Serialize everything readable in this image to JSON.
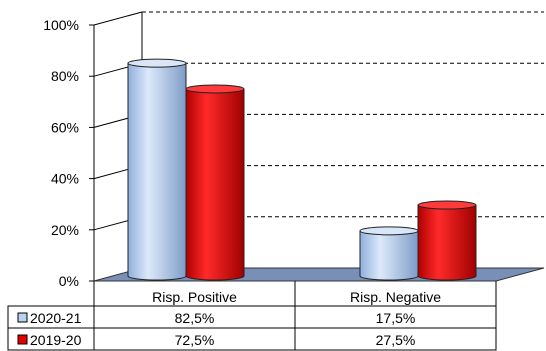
{
  "chart_data": {
    "type": "bar",
    "style": "3d-cylinder",
    "categories": [
      "Risp. Positive",
      "Risp. Negative"
    ],
    "series": [
      {
        "name": "2020-21",
        "values": [
          82.5,
          17.5
        ],
        "value_labels": [
          "82,5%",
          "17,5%"
        ],
        "color": "#B9D3F2"
      },
      {
        "name": "2019-20",
        "values": [
          72.5,
          27.5
        ],
        "value_labels": [
          "72,5%",
          "27,5%"
        ],
        "color": "#E50000"
      }
    ],
    "y_ticks": [
      "0%",
      "20%",
      "40%",
      "60%",
      "80%",
      "100%"
    ],
    "ylim": [
      0,
      100
    ],
    "grid": "dashed-horizontal",
    "legend": "data-table-below",
    "floor_color": "#7A8FB8"
  }
}
